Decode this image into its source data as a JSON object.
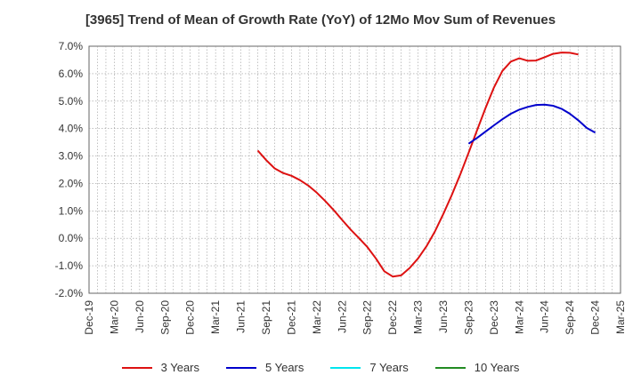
{
  "chart_data": {
    "type": "line",
    "title": "[3965]  Trend of Mean of Growth Rate (YoY) of 12Mo Mov Sum of Revenues",
    "xlabel": "",
    "ylabel": "",
    "ylim": [
      -2.0,
      7.0
    ],
    "y_ticks": [
      "7.0%",
      "6.0%",
      "5.0%",
      "4.0%",
      "3.0%",
      "2.0%",
      "1.0%",
      "0.0%",
      "-1.0%",
      "-2.0%"
    ],
    "y_tick_values": [
      7,
      6,
      5,
      4,
      3,
      2,
      1,
      0,
      -1,
      -2
    ],
    "x_ticks": [
      "Dec-19",
      "Mar-20",
      "Jun-20",
      "Sep-20",
      "Dec-20",
      "Mar-21",
      "Jun-21",
      "Sep-21",
      "Dec-21",
      "Mar-22",
      "Jun-22",
      "Sep-22",
      "Dec-22",
      "Mar-23",
      "Jun-23",
      "Sep-23",
      "Dec-23",
      "Mar-24",
      "Jun-24",
      "Sep-24",
      "Dec-24",
      "Mar-25"
    ],
    "grid": true,
    "legend_position": "bottom",
    "series": [
      {
        "name": "3 Years",
        "color": "#dd1111",
        "start_index": 20,
        "values": [
          3.2,
          2.85,
          2.55,
          2.38,
          2.28,
          2.12,
          1.92,
          1.66,
          1.36,
          1.03,
          0.67,
          0.32,
          0.01,
          -0.32,
          -0.73,
          -1.2,
          -1.39,
          -1.35,
          -1.08,
          -0.73,
          -0.29,
          0.25,
          0.89,
          1.58,
          2.33,
          3.12,
          3.94,
          4.75,
          5.5,
          6.1,
          6.44,
          6.56,
          6.47,
          6.48,
          6.6,
          6.72,
          6.77,
          6.76,
          6.7
        ]
      },
      {
        "name": "5 Years",
        "color": "#0000cc",
        "start_index": 45,
        "values": [
          3.45,
          3.66,
          3.89,
          4.12,
          4.34,
          4.54,
          4.69,
          4.79,
          4.86,
          4.87,
          4.83,
          4.72,
          4.54,
          4.3,
          4.02,
          3.85
        ]
      },
      {
        "name": "7 Years",
        "color": "#00e5ee",
        "start_index": 0,
        "values": []
      },
      {
        "name": "10 Years",
        "color": "#228b22",
        "start_index": 0,
        "values": []
      }
    ]
  }
}
